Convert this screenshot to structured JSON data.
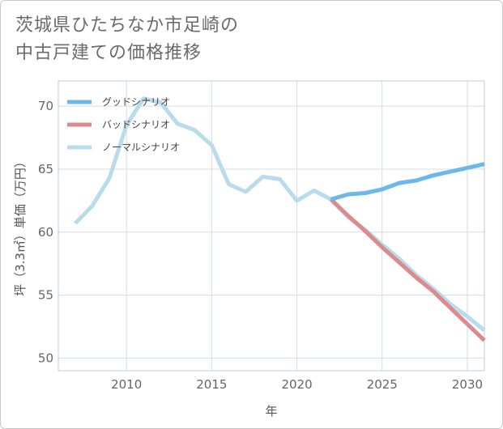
{
  "title_lines": [
    "茨城県ひたちなか市足崎の",
    "中古戸建ての価格推移"
  ],
  "chart_data": {
    "type": "line",
    "xlabel": "年",
    "ylabel": "坪（3.3㎡）単価（万円）",
    "xlim": [
      2006,
      2031
    ],
    "ylim": [
      49,
      72
    ],
    "x_ticks": [
      2010,
      2015,
      2020,
      2025,
      2030
    ],
    "y_ticks": [
      50,
      55,
      60,
      65,
      70
    ],
    "grid": true,
    "legend_position": "top-left",
    "series": [
      {
        "name": "グッドシナリオ",
        "color": "#6cb8ea",
        "x": [
          2022,
          2023,
          2024,
          2025,
          2026,
          2027,
          2028,
          2029,
          2030,
          2031
        ],
        "values": [
          62.6,
          63.0,
          63.1,
          63.4,
          63.9,
          64.1,
          64.5,
          64.8,
          65.1,
          65.4
        ]
      },
      {
        "name": "バッドシナリオ",
        "color": "#dd8a8f",
        "x": [
          2022,
          2023,
          2024,
          2025,
          2026,
          2027,
          2028,
          2029,
          2030,
          2031
        ],
        "values": [
          62.6,
          61.3,
          60.1,
          58.8,
          57.6,
          56.4,
          55.3,
          54.0,
          52.7,
          51.4
        ]
      },
      {
        "name": "ノーマルシナリオ",
        "color": "#b8dcec",
        "x": [
          2007,
          2008,
          2009,
          2010,
          2011,
          2012,
          2013,
          2014,
          2015,
          2016,
          2017,
          2018,
          2019,
          2020,
          2021,
          2022,
          2023,
          2024,
          2025,
          2026,
          2027,
          2028,
          2029,
          2030,
          2031
        ],
        "values": [
          60.7,
          62.1,
          64.3,
          68.5,
          70.6,
          70.3,
          68.6,
          68.1,
          66.9,
          63.8,
          63.2,
          64.4,
          64.2,
          62.5,
          63.3,
          62.6,
          61.2,
          60.2,
          59.0,
          57.9,
          56.6,
          55.5,
          54.3,
          53.3,
          52.2
        ]
      }
    ]
  }
}
